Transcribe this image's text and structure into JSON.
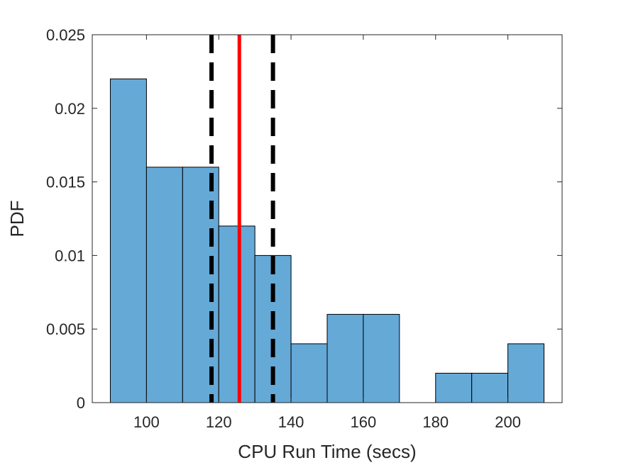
{
  "chart_data": {
    "type": "bar",
    "subtype": "histogram",
    "title": "",
    "xlabel": "CPU Run Time (secs)",
    "ylabel": "PDF",
    "xlim": [
      85,
      215
    ],
    "ylim": [
      0,
      0.025
    ],
    "xticks": [
      100,
      120,
      140,
      160,
      180,
      200
    ],
    "yticks": [
      0,
      0.005,
      0.01,
      0.015,
      0.02,
      0.025
    ],
    "ytick_labels": [
      "0",
      "0.005",
      "0.01",
      "0.015",
      "0.02",
      "0.025"
    ],
    "bin_edges": [
      90,
      100,
      110,
      120,
      130,
      140,
      150,
      160,
      170,
      180,
      190,
      200,
      210
    ],
    "values": [
      0.022,
      0.016,
      0.016,
      0.012,
      0.01,
      0.004,
      0.006,
      0.006,
      0.0,
      0.002,
      0.002,
      0.004
    ],
    "bar_color": "#65a9d7",
    "bar_edge_color": "#000000",
    "reference_lines": [
      {
        "x": 118.0,
        "style": "dashed",
        "color": "#000000"
      },
      {
        "x": 125.7,
        "style": "solid",
        "color": "#ff0000"
      },
      {
        "x": 135.0,
        "style": "dashed",
        "color": "#000000"
      }
    ],
    "grid": false,
    "legend": "none"
  }
}
